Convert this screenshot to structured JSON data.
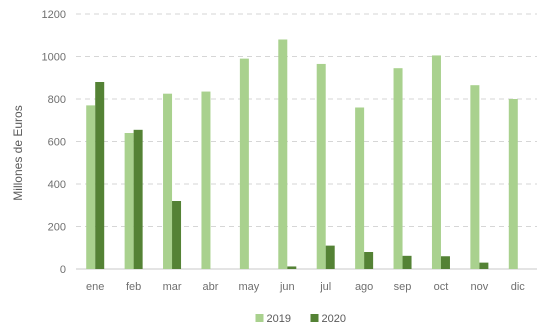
{
  "chart_data": {
    "type": "bar",
    "ylabel": "Millones de Euros",
    "ylim": [
      0,
      1200
    ],
    "yticks": [
      0,
      200,
      400,
      600,
      800,
      1000,
      1200
    ],
    "grid": true,
    "legend_position": "bottom",
    "categories": [
      "ene",
      "feb",
      "mar",
      "abr",
      "may",
      "jun",
      "jul",
      "ago",
      "sep",
      "oct",
      "nov",
      "dic"
    ],
    "series": [
      {
        "name": "2019",
        "color": "#a9d18e",
        "values": [
          770,
          640,
          825,
          835,
          990,
          1080,
          965,
          760,
          945,
          1005,
          865,
          800
        ]
      },
      {
        "name": "2020",
        "color": "#548235",
        "values": [
          880,
          655,
          320,
          0,
          0,
          12,
          110,
          80,
          62,
          60,
          30,
          null
        ]
      }
    ]
  }
}
